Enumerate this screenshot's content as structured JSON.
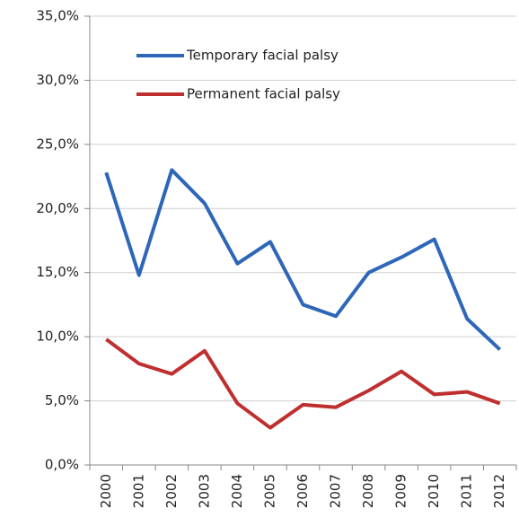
{
  "chart_data": {
    "type": "line",
    "categories": [
      "2000",
      "2001",
      "2002",
      "2003",
      "2004",
      "2005",
      "2006",
      "2007",
      "2008",
      "2009",
      "2010",
      "2011",
      "2012"
    ],
    "series": [
      {
        "name": "Temporary facial palsy",
        "color": "#2e66b8",
        "values": [
          22.8,
          14.8,
          23.0,
          20.4,
          15.7,
          17.4,
          12.5,
          11.6,
          15.0,
          16.2,
          17.6,
          11.4,
          9.0
        ]
      },
      {
        "name": "Permanent facial palsy",
        "color": "#bf2f2f",
        "values": [
          9.8,
          7.9,
          7.1,
          8.9,
          4.8,
          2.9,
          4.7,
          4.5,
          5.8,
          7.3,
          5.5,
          5.7,
          4.8
        ]
      }
    ],
    "ylim": [
      0,
      35
    ],
    "yticks": [
      {
        "value": 0,
        "label": "0,0%"
      },
      {
        "value": 5,
        "label": "5,0%"
      },
      {
        "value": 10,
        "label": "10,0%"
      },
      {
        "value": 15,
        "label": "15,0%"
      },
      {
        "value": 20,
        "label": "20,0%"
      },
      {
        "value": 25,
        "label": "25,0%"
      },
      {
        "value": 30,
        "label": "30,0%"
      },
      {
        "value": 35,
        "label": "35,0%"
      }
    ],
    "grid": true,
    "legend": "upper left"
  }
}
